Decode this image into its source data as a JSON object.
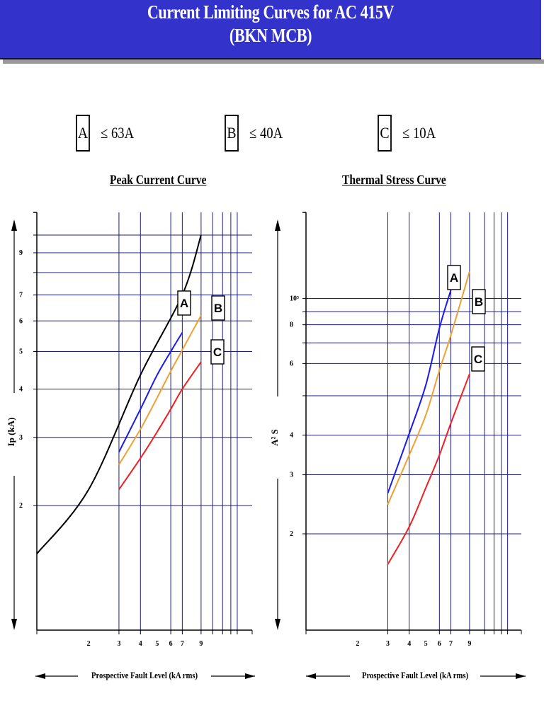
{
  "header": {
    "title_line1": "Current Limiting Curves for AC 415V",
    "title_line2": "(BKN MCB)"
  },
  "legend": [
    {
      "box": "A",
      "text": "≤ 63A"
    },
    {
      "box": "B",
      "text": "≤ 40A"
    },
    {
      "box": "C",
      "text": "≤ 10A"
    }
  ],
  "colors": {
    "header_bg": "#3333cc",
    "grid": "#1c1c8c",
    "A": "#1a1aee",
    "B": "#f0a030",
    "C": "#ee2020",
    "limit": "#000000"
  },
  "chart_data": [
    {
      "type": "line",
      "title": "Peak Current Curve",
      "xlabel": "Prospective Fault Level (kA rms)",
      "ylabel": "Ip (kA)",
      "xscale": "log",
      "yscale": "log",
      "xticks": [
        "2",
        "3",
        "4",
        "5",
        "6",
        "7",
        "9"
      ],
      "yticks": [
        "9",
        "7",
        "6",
        "5",
        "4",
        "3",
        "2"
      ],
      "series": [
        {
          "name": "A",
          "x": [
            3,
            4,
            5,
            6,
            7
          ],
          "y": [
            2.75,
            3.55,
            4.35,
            5.0,
            5.6
          ]
        },
        {
          "name": "B",
          "x": [
            3,
            4,
            5,
            6,
            7,
            9
          ],
          "y": [
            2.55,
            3.15,
            3.8,
            4.45,
            5.05,
            6.2
          ]
        },
        {
          "name": "C",
          "x": [
            3,
            4,
            5,
            6,
            7,
            9
          ],
          "y": [
            2.2,
            2.65,
            3.1,
            3.55,
            4.0,
            4.7
          ]
        },
        {
          "name": "",
          "x": [
            1,
            2,
            4,
            7,
            9
          ],
          "y": [
            1.5,
            2.2,
            4.35,
            7.0,
            10.0
          ]
        }
      ]
    },
    {
      "type": "line",
      "title": "Thermal Stress Curve",
      "xlabel": "Prospective Fault Level (kA rms)",
      "ylabel": "A² S",
      "xscale": "log",
      "yscale": "log",
      "xticks": [
        "2",
        "3",
        "4",
        "5",
        "6",
        "7",
        "9"
      ],
      "yticks": [
        "10⁵",
        "8",
        "6",
        "4",
        "3",
        "2"
      ],
      "series": [
        {
          "name": "A",
          "x": [
            3,
            4,
            5,
            6,
            7
          ],
          "y": [
            2.65,
            4.0,
            5.6,
            8.3,
            10.8
          ]
        },
        {
          "name": "B",
          "x": [
            3,
            4,
            5,
            6,
            7,
            9
          ],
          "y": [
            2.45,
            3.45,
            4.55,
            6.2,
            7.9,
            12.3
          ]
        },
        {
          "name": "C",
          "x": [
            3,
            4,
            5,
            6,
            7,
            9
          ],
          "y": [
            1.62,
            2.1,
            2.75,
            3.45,
            4.3,
            6.05
          ]
        }
      ]
    }
  ]
}
